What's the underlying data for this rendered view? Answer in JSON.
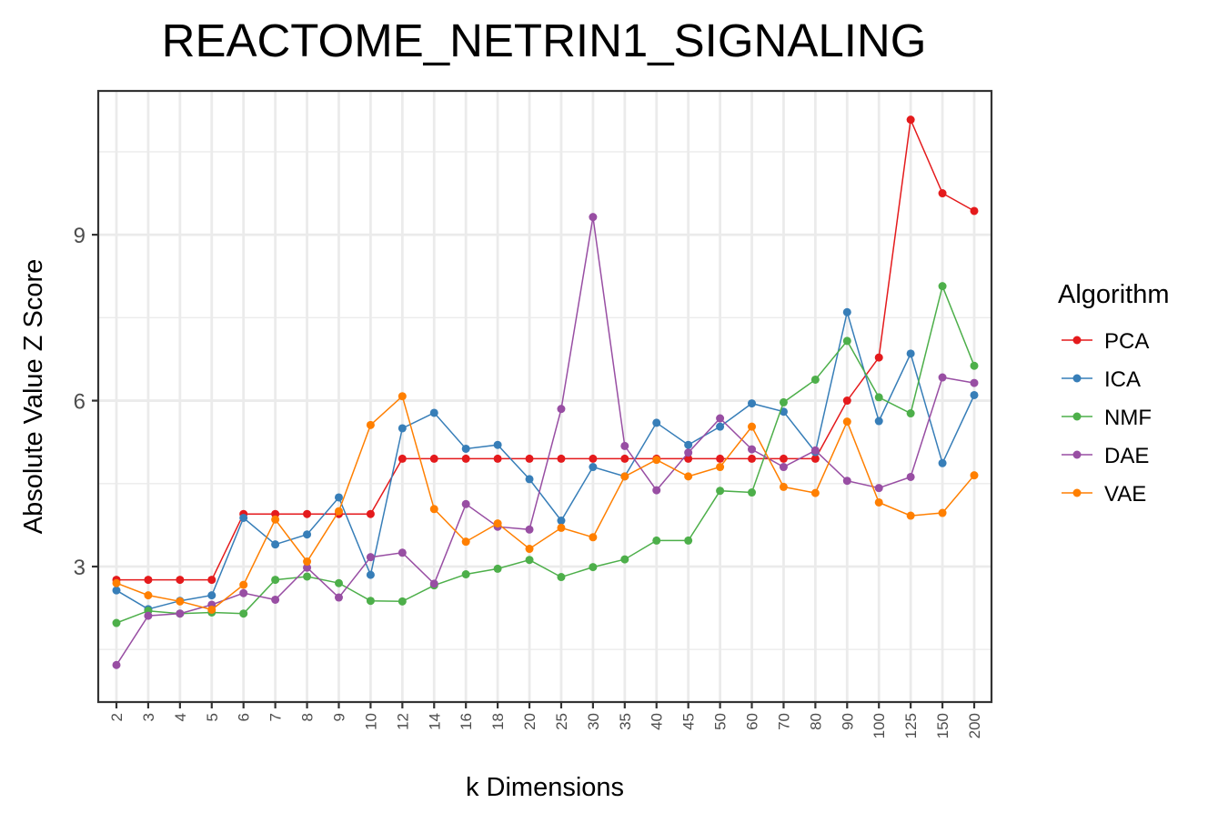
{
  "chart_data": {
    "type": "line",
    "title": "REACTOME_NETRIN1_SIGNALING",
    "xlabel": "k Dimensions",
    "ylabel": "Absolute Value Z Score",
    "categories": [
      "2",
      "3",
      "4",
      "5",
      "6",
      "7",
      "8",
      "9",
      "10",
      "12",
      "14",
      "16",
      "18",
      "20",
      "25",
      "30",
      "35",
      "40",
      "45",
      "50",
      "60",
      "70",
      "80",
      "90",
      "100",
      "125",
      "150",
      "200"
    ],
    "yticks": [
      3,
      6,
      9
    ],
    "ylim": [
      0.55,
      11.6
    ],
    "grid": true,
    "legend_title": "Algorithm",
    "legend_position": "right",
    "series": [
      {
        "name": "PCA",
        "color": "#E41A1C",
        "values": [
          2.76,
          2.76,
          2.76,
          2.76,
          3.95,
          3.95,
          3.95,
          3.95,
          3.95,
          4.95,
          4.95,
          4.95,
          4.95,
          4.95,
          4.95,
          4.95,
          4.95,
          4.95,
          4.95,
          4.95,
          4.95,
          4.95,
          4.95,
          6.0,
          6.78,
          11.08,
          9.75,
          9.43
        ]
      },
      {
        "name": "ICA",
        "color": "#377EB8",
        "values": [
          2.57,
          2.23,
          2.38,
          2.48,
          3.88,
          3.4,
          3.58,
          4.25,
          2.85,
          5.5,
          5.78,
          5.13,
          5.2,
          4.58,
          3.83,
          4.8,
          4.63,
          5.6,
          5.2,
          5.53,
          5.95,
          5.8,
          5.07,
          7.6,
          5.63,
          6.85,
          4.87,
          6.1
        ]
      },
      {
        "name": "NMF",
        "color": "#4DAF4A",
        "values": [
          1.98,
          2.2,
          2.15,
          2.17,
          2.15,
          2.76,
          2.82,
          2.7,
          2.38,
          2.37,
          2.66,
          2.86,
          2.96,
          3.12,
          2.81,
          2.99,
          3.13,
          3.47,
          3.47,
          4.37,
          4.34,
          5.97,
          6.38,
          7.08,
          6.06,
          5.77,
          8.07,
          6.63
        ]
      },
      {
        "name": "DAE",
        "color": "#984EA3",
        "values": [
          1.22,
          2.11,
          2.15,
          2.31,
          2.52,
          2.4,
          2.98,
          2.44,
          3.17,
          3.25,
          2.69,
          4.13,
          3.72,
          3.67,
          5.85,
          9.32,
          5.18,
          4.38,
          5.06,
          5.68,
          5.12,
          4.8,
          5.1,
          4.55,
          4.42,
          4.62,
          6.42,
          6.32
        ]
      },
      {
        "name": "VAE",
        "color": "#FF7F00",
        "values": [
          2.7,
          2.48,
          2.37,
          2.22,
          2.67,
          3.85,
          3.09,
          4.0,
          5.56,
          6.08,
          4.04,
          3.45,
          3.78,
          3.32,
          3.7,
          3.53,
          4.63,
          4.93,
          4.63,
          4.8,
          5.53,
          4.44,
          4.33,
          5.62,
          4.16,
          3.92,
          3.97,
          4.65
        ]
      }
    ]
  }
}
